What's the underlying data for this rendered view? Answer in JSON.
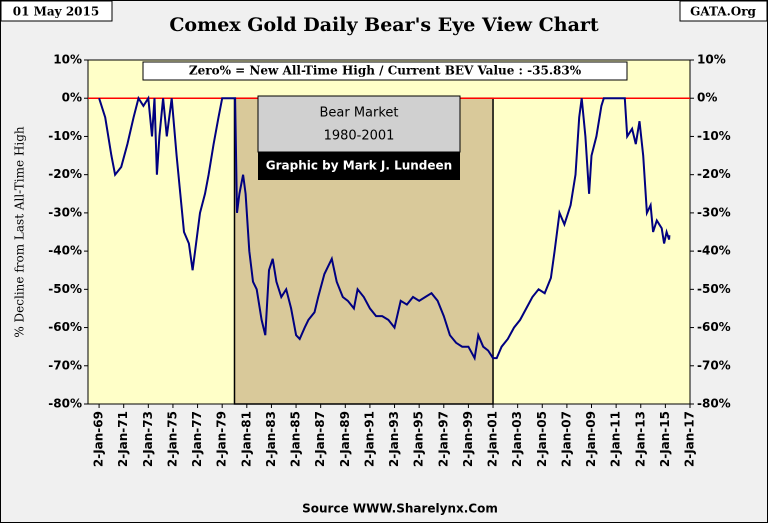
{
  "chart_data": {
    "type": "line",
    "title": "Comex Gold Daily Bear's Eye View Chart",
    "date_label": "01 May 2015",
    "brand": "GATA.Org",
    "source": "Source WWW.Sharelynx.Com",
    "ylabel": "% Decline from Last All-Time High",
    "annotations": [
      "Zero% = New All-Time High  / Current BEV Value : -35.83%",
      "Bear Market",
      "1980-2001",
      "Graphic by Mark J. Lundeen"
    ],
    "shade": [
      1980,
      2001
    ],
    "color": "#000080",
    "zero_line_color": "#ff0000",
    "xlim": [
      1968.1,
      2017
    ],
    "xticks": [
      {
        "value": 1969,
        "label": "2-Jan-69"
      },
      {
        "value": 1971,
        "label": "2-Jan-71"
      },
      {
        "value": 1973,
        "label": "2-Jan-73"
      },
      {
        "value": 1975,
        "label": "2-Jan-75"
      },
      {
        "value": 1977,
        "label": "2-Jan-77"
      },
      {
        "value": 1979,
        "label": "2-Jan-79"
      },
      {
        "value": 1981,
        "label": "2-Jan-81"
      },
      {
        "value": 1983,
        "label": "2-Jan-83"
      },
      {
        "value": 1985,
        "label": "2-Jan-85"
      },
      {
        "value": 1987,
        "label": "2-Jan-87"
      },
      {
        "value": 1989,
        "label": "2-Jan-89"
      },
      {
        "value": 1991,
        "label": "2-Jan-91"
      },
      {
        "value": 1993,
        "label": "2-Jan-93"
      },
      {
        "value": 1995,
        "label": "2-Jan-95"
      },
      {
        "value": 1997,
        "label": "2-Jan-97"
      },
      {
        "value": 1999,
        "label": "2-Jan-99"
      },
      {
        "value": 2001,
        "label": "2-Jan-01"
      },
      {
        "value": 2003,
        "label": "2-Jan-03"
      },
      {
        "value": 2005,
        "label": "2-Jan-05"
      },
      {
        "value": 2007,
        "label": "2-Jan-07"
      },
      {
        "value": 2009,
        "label": "2-Jan-09"
      },
      {
        "value": 2011,
        "label": "2-Jan-11"
      },
      {
        "value": 2013,
        "label": "2-Jan-13"
      },
      {
        "value": 2015,
        "label": "2-Jan-15"
      },
      {
        "value": 2017,
        "label": "2-Jan-17"
      }
    ],
    "ylim": [
      -80,
      10
    ],
    "yticks": [
      {
        "value": 10,
        "label": "10%"
      },
      {
        "value": 0,
        "label": "0%"
      },
      {
        "value": -10,
        "label": "-10%"
      },
      {
        "value": -20,
        "label": "-20%"
      },
      {
        "value": -30,
        "label": "-30%"
      },
      {
        "value": -40,
        "label": "-40%"
      },
      {
        "value": -50,
        "label": "-50%"
      },
      {
        "value": -60,
        "label": "-60%"
      },
      {
        "value": -70,
        "label": "-70%"
      },
      {
        "value": -80,
        "label": "-80%"
      }
    ],
    "y2lim": [
      -80,
      10
    ],
    "y2ticks": [
      {
        "value": 10,
        "label": "10%"
      },
      {
        "value": 0,
        "label": "0%"
      },
      {
        "value": -10,
        "label": "-10%"
      },
      {
        "value": -20,
        "label": "-20%"
      },
      {
        "value": -30,
        "label": "-30%"
      },
      {
        "value": -40,
        "label": "-40%"
      },
      {
        "value": -50,
        "label": "-50%"
      },
      {
        "value": -60,
        "label": "-60%"
      },
      {
        "value": -70,
        "label": "-70%"
      },
      {
        "value": -80,
        "label": "-80%"
      }
    ],
    "x": [
      1969,
      1969.5,
      1970,
      1970.3,
      1970.8,
      1971.3,
      1971.8,
      1972.2,
      1972.6,
      1973,
      1973.3,
      1973.5,
      1973.7,
      1973.9,
      1974.2,
      1974.5,
      1974.9,
      1975.3,
      1975.6,
      1975.9,
      1976.3,
      1976.6,
      1976.8,
      1977.2,
      1977.6,
      1977.9,
      1978.3,
      1978.7,
      1979,
      1979.5,
      1979.9,
      1980.05,
      1980.2,
      1980.4,
      1980.7,
      1980.9,
      1981.2,
      1981.5,
      1981.8,
      1982.2,
      1982.5,
      1982.8,
      1983.1,
      1983.4,
      1983.8,
      1984.2,
      1984.6,
      1985,
      1985.3,
      1985.7,
      1986,
      1986.5,
      1986.8,
      1987.3,
      1987.9,
      1988.3,
      1988.8,
      1989.2,
      1989.7,
      1990,
      1990.5,
      1991,
      1991.5,
      1992,
      1992.5,
      1993,
      1993.5,
      1994,
      1994.5,
      1995,
      1995.5,
      1996,
      1996.5,
      1997,
      1997.5,
      1998,
      1998.5,
      1999,
      1999.5,
      1999.8,
      2000.2,
      2000.6,
      2001,
      2001.3,
      2001.7,
      2002.2,
      2002.7,
      2003.2,
      2003.7,
      2004.2,
      2004.7,
      2005.2,
      2005.7,
      2006,
      2006.4,
      2006.8,
      2007.3,
      2007.7,
      2008,
      2008.2,
      2008.5,
      2008.8,
      2009,
      2009.4,
      2009.8,
      2010,
      2010.4,
      2010.8,
      2011.3,
      2011.7,
      2011.9,
      2012.3,
      2012.6,
      2012.9,
      2013.2,
      2013.5,
      2013.8,
      2014,
      2014.3,
      2014.7,
      2014.9,
      2015.1,
      2015.3,
      2015.33
    ],
    "values": [
      0,
      -5,
      -15,
      -20,
      -18,
      -12,
      -5,
      0,
      -2,
      0,
      -10,
      0,
      -20,
      -10,
      0,
      -10,
      0,
      -15,
      -25,
      -35,
      -38,
      -45,
      -40,
      -30,
      -25,
      -20,
      -12,
      -5,
      0,
      0,
      0,
      0,
      -30,
      -25,
      -20,
      -25,
      -40,
      -48,
      -50,
      -58,
      -62,
      -45,
      -42,
      -48,
      -52,
      -50,
      -55,
      -62,
      -63,
      -60,
      -58,
      -56,
      -52,
      -46,
      -42,
      -48,
      -52,
      -53,
      -55,
      -50,
      -52,
      -55,
      -57,
      -57,
      -58,
      -60,
      -53,
      -54,
      -52,
      -53,
      -52,
      -51,
      -53,
      -57,
      -62,
      -64,
      -65,
      -65,
      -68,
      -62,
      -65,
      -66,
      -68,
      -68,
      -65,
      -63,
      -60,
      -58,
      -55,
      -52,
      -50,
      -51,
      -47,
      -40,
      -30,
      -33,
      -28,
      -20,
      -5,
      0,
      -10,
      -25,
      -15,
      -10,
      -2,
      0,
      0,
      0,
      0,
      0,
      -10,
      -8,
      -12,
      -6,
      -15,
      -30,
      -28,
      -35,
      -32,
      -34,
      -38,
      -35,
      -37,
      -35.83
    ]
  }
}
